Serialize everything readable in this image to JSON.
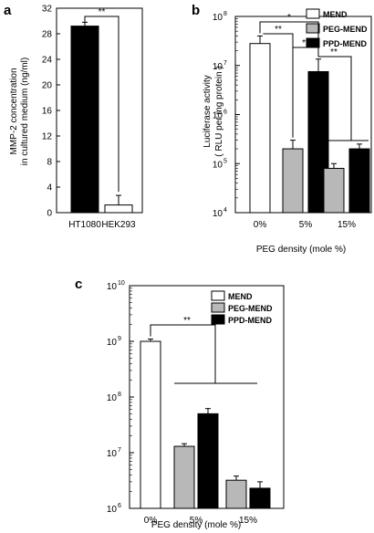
{
  "chart_data": [
    {
      "panel": "a",
      "type": "bar",
      "categories": [
        "HT1080",
        "HEK293"
      ],
      "values": [
        29.2,
        1.2
      ],
      "errors": [
        0.6,
        1.5
      ],
      "colors": [
        "#000000",
        "#ffffff"
      ],
      "ylabel_lines": [
        "MMP-2 concentration",
        "in cultured medium (ng/ml)"
      ],
      "ylim": [
        0,
        32
      ],
      "yticks": [
        "0",
        "4",
        "8",
        "12",
        "16",
        "20",
        "24",
        "28",
        "32"
      ],
      "significance": "**"
    },
    {
      "panel": "b",
      "type": "bar",
      "scale": "log",
      "ylabel_lines": [
        "Luciferase activity",
        "( RLU per mg protein )"
      ],
      "xlabel": "PEG density (mole %)",
      "groups": [
        "0%",
        "5%",
        "15%"
      ],
      "legend": [
        "MEND",
        "PEG-MEND",
        "PPD-MEND"
      ],
      "legend_colors": [
        "#ffffff",
        "#b8b8b8",
        "#000000"
      ],
      "ylim": [
        10000,
        100000000
      ],
      "yticks": [
        "10",
        "10",
        "10",
        "10",
        "10"
      ],
      "ytick_exponents": [
        "4",
        "5",
        "6",
        "7",
        "8"
      ],
      "bars": [
        {
          "group": "0%",
          "series": "MEND",
          "value": 28000000,
          "error": 12000000
        },
        {
          "group": "5%",
          "series": "PEG-MEND",
          "value": 200000,
          "error": 100000
        },
        {
          "group": "5%",
          "series": "PPD-MEND",
          "value": 7500000,
          "error": 6000000
        },
        {
          "group": "15%",
          "series": "PEG-MEND",
          "value": 80000,
          "error": 20000
        },
        {
          "group": "15%",
          "series": "PPD-MEND",
          "value": 200000,
          "error": 50000
        }
      ],
      "significance": [
        "*",
        "**",
        "**",
        "**"
      ]
    },
    {
      "panel": "c",
      "type": "bar",
      "scale": "log",
      "xlabel": "PEG density (mole %)",
      "groups": [
        "0%",
        "5%",
        "15%"
      ],
      "legend": [
        "MEND",
        "PEG-MEND",
        "PPD-MEND"
      ],
      "legend_colors": [
        "#ffffff",
        "#b8b8b8",
        "#000000"
      ],
      "ylim": [
        1000000,
        10000000000
      ],
      "yticks": [
        "10",
        "10",
        "10",
        "10",
        "10"
      ],
      "ytick_exponents": [
        "6",
        "7",
        "8",
        "9",
        "10"
      ],
      "bars": [
        {
          "group": "0%",
          "series": "MEND",
          "value": 1000000000,
          "error": 100000000
        },
        {
          "group": "5%",
          "series": "PEG-MEND",
          "value": 13000000,
          "error": 1500000
        },
        {
          "group": "5%",
          "series": "PPD-MEND",
          "value": 50000000,
          "error": 12000000
        },
        {
          "group": "15%",
          "series": "PEG-MEND",
          "value": 3200000,
          "error": 600000
        },
        {
          "group": "15%",
          "series": "PPD-MEND",
          "value": 2300000,
          "error": 700000
        }
      ],
      "significance": [
        "**"
      ]
    }
  ]
}
